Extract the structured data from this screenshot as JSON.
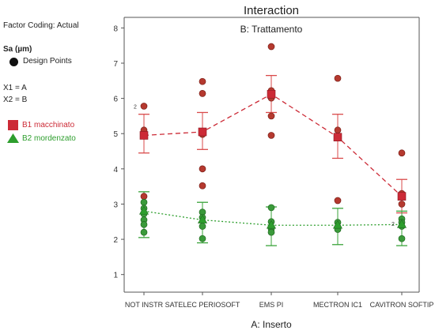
{
  "panel": {
    "factor_coding": "Factor Coding: Actual",
    "response": "Sa  (µm)",
    "design_points": "Design Points",
    "x1": "X1 = A",
    "x2": "X2 = B",
    "b1": "B1 macchinato",
    "b2": "B2 mordenzato"
  },
  "colors": {
    "b1": "#cc2a36",
    "b2": "#2d9e2d",
    "point_red": "#b5392f",
    "point_green": "#3a9a3a",
    "axis": "#555555",
    "whisker_red": "#d94a4a",
    "whisker_green": "#3aa33a"
  },
  "chart_data": {
    "type": "scatter",
    "title": "Interaction",
    "subtitle": "B: Trattamento",
    "xlabel": "A: Inserto",
    "ylabel": "",
    "categories": [
      "NOT INSTR",
      "SATELEC PERIOSOFT",
      "EMS PI",
      "MECTRON IC1",
      "CAVITRON SOFTIP"
    ],
    "ylim": [
      0.5,
      8.3
    ],
    "yticks": [
      1,
      2,
      3,
      4,
      5,
      6,
      7,
      8
    ],
    "series": [
      {
        "name": "B1 macchinato",
        "color_key": "b1",
        "marker": "square",
        "line": "dashed",
        "means": [
          4.95,
          5.05,
          6.12,
          4.9,
          3.22
        ],
        "lower": [
          4.45,
          4.55,
          5.6,
          4.3,
          2.75
        ],
        "upper": [
          5.55,
          5.6,
          6.65,
          5.55,
          3.7
        ]
      },
      {
        "name": "B2 mordenzato",
        "color_key": "b2",
        "marker": "triangle",
        "line": "dotted",
        "means": [
          2.8,
          2.55,
          2.4,
          2.4,
          2.42
        ],
        "lower": [
          2.05,
          1.9,
          1.82,
          1.85,
          1.82
        ],
        "upper": [
          3.35,
          3.05,
          2.92,
          2.88,
          2.8
        ]
      }
    ],
    "points_red": [
      [
        0,
        5.78
      ],
      [
        0,
        5.1
      ],
      [
        0,
        4.97
      ],
      [
        0,
        3.22
      ],
      [
        1,
        6.48
      ],
      [
        1,
        6.14
      ],
      [
        1,
        4.98
      ],
      [
        1,
        4.0
      ],
      [
        1,
        3.52
      ],
      [
        2,
        7.47
      ],
      [
        2,
        6.22
      ],
      [
        2,
        6.01
      ],
      [
        2,
        5.5
      ],
      [
        2,
        4.95
      ],
      [
        3,
        6.57
      ],
      [
        3,
        5.1
      ],
      [
        3,
        4.88
      ],
      [
        3,
        3.1
      ],
      [
        4,
        4.45
      ],
      [
        4,
        3.3
      ],
      [
        4,
        3.0
      ]
    ],
    "points_green": [
      [
        0,
        3.05
      ],
      [
        0,
        2.88
      ],
      [
        0,
        2.72
      ],
      [
        0,
        2.55
      ],
      [
        0,
        2.42
      ],
      [
        0,
        2.2
      ],
      [
        1,
        2.77
      ],
      [
        1,
        2.62
      ],
      [
        1,
        2.37
      ],
      [
        1,
        2.02
      ],
      [
        2,
        2.9
      ],
      [
        2,
        2.5
      ],
      [
        2,
        2.3
      ],
      [
        2,
        2.2
      ],
      [
        3,
        2.48
      ],
      [
        3,
        2.35
      ],
      [
        3,
        2.28
      ],
      [
        4,
        2.58
      ],
      [
        4,
        2.48
      ],
      [
        4,
        2.37
      ],
      [
        4,
        2.02
      ]
    ],
    "point_counts": [
      {
        "text": "2",
        "x": 0,
        "y": 5.78
      },
      {
        "text": "2",
        "x": 4,
        "y": 2.45
      }
    ]
  }
}
